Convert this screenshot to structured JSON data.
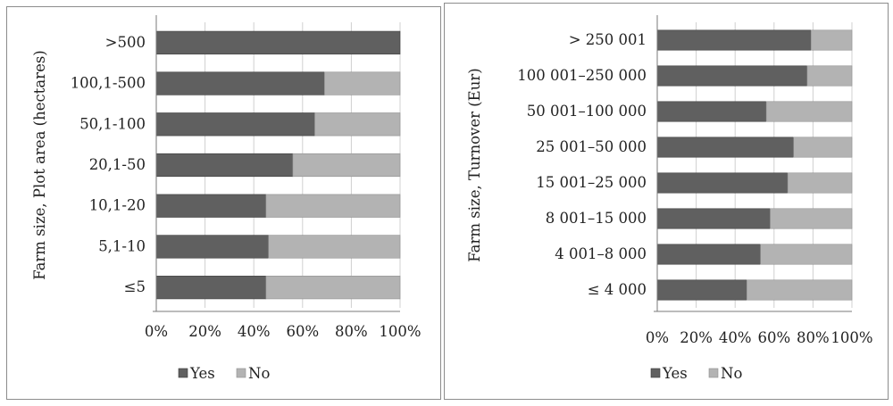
{
  "charts": [
    {
      "type": "bar",
      "orientation": "horizontal",
      "stacked": "percent",
      "ylabel": "Farm size,  Plot area (hectares)",
      "xlabel": "",
      "categories": [
        ">500",
        "100,1-500",
        "50,1-100",
        "20,1-50",
        "10,1-20",
        "5,1-10",
        "≤5"
      ],
      "x_ticks": [
        "0%",
        "20%",
        "40%",
        "60%",
        "80%",
        "100%"
      ],
      "xlim": [
        0,
        100
      ],
      "grid": true,
      "legend_position": "bottom",
      "series": [
        {
          "name": "Yes",
          "values": [
            100,
            69,
            65,
            56,
            45,
            46,
            45
          ],
          "color": "#606060"
        },
        {
          "name": "No",
          "values": [
            0,
            31,
            35,
            44,
            55,
            54,
            55
          ],
          "color": "#b3b3b3"
        }
      ]
    },
    {
      "type": "bar",
      "orientation": "horizontal",
      "stacked": "percent",
      "ylabel": "Farm size,  Turnover (Eur)",
      "xlabel": "",
      "categories": [
        "> 250 001",
        "100 001–250 000",
        "50 001–100 000",
        "25 001–50 000",
        "15 001–25 000",
        "8 001–15 000",
        "4 001–8 000",
        "≤ 4 000"
      ],
      "x_ticks": [
        "0%",
        "20%",
        "40%",
        "60%",
        "80%",
        "100%"
      ],
      "xlim": [
        0,
        100
      ],
      "grid": true,
      "legend_position": "bottom",
      "series": [
        {
          "name": "Yes",
          "values": [
            79,
            77,
            56,
            70,
            67,
            58,
            53,
            46
          ],
          "color": "#606060"
        },
        {
          "name": "No",
          "values": [
            21,
            23,
            44,
            30,
            33,
            42,
            47,
            54
          ],
          "color": "#b3b3b3"
        }
      ]
    }
  ]
}
